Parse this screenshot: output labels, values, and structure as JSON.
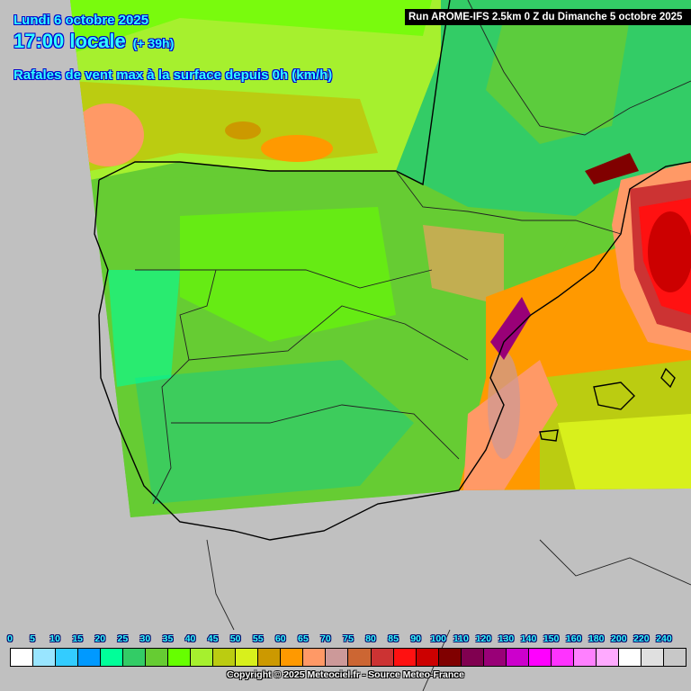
{
  "header": {
    "date": "Lundi 6 octobre 2025",
    "time": "17:00 locale",
    "lead": "(+ 39h)",
    "parameter": "Rafales de vent max à la surface depuis 0h (km/h)",
    "run": "Run AROME-IFS 2.5km 0 Z du Dimanche 5 octobre 2025"
  },
  "legend": {
    "labels": [
      "0",
      "5",
      "10",
      "15",
      "20",
      "25",
      "30",
      "35",
      "40",
      "45",
      "50",
      "55",
      "60",
      "65",
      "70",
      "75",
      "80",
      "85",
      "90",
      "100",
      "110",
      "120",
      "130",
      "140",
      "150",
      "160",
      "180",
      "200",
      "220",
      "240"
    ],
    "colors": [
      "#ffffff",
      "#99e5ff",
      "#33ccff",
      "#0099ff",
      "#00ff99",
      "#33cc66",
      "#66cc33",
      "#66ff00",
      "#a6f02e",
      "#bbcc11",
      "#d8f01c",
      "#cc9900",
      "#ff9900",
      "#ff9966",
      "#cc9999",
      "#cc6633",
      "#cc3333",
      "#ff1111",
      "#cc0000",
      "#800000",
      "#800050",
      "#990077",
      "#cc00cc",
      "#ff00ff",
      "#ff33ff",
      "#ff80ff",
      "#ffaaff",
      "#ffffff",
      "#e0e0e0",
      "#c8c8c8"
    ]
  },
  "copyright": "Copyright © 2025 Meteociel.fr - Source Meteo-France"
}
